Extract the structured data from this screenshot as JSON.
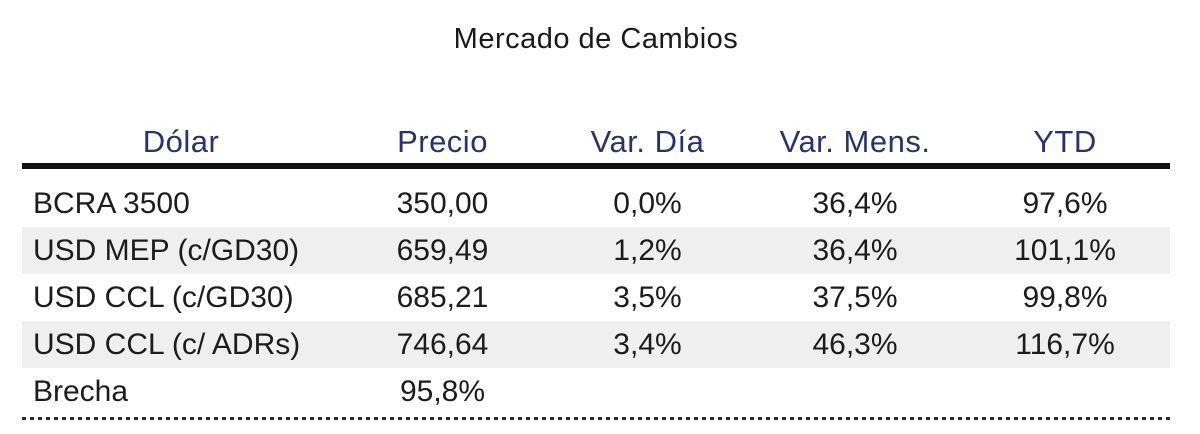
{
  "chart_data": {
    "type": "table",
    "title": "Mercado de Cambios",
    "columns": [
      "Dólar",
      "Precio",
      "Var. Día",
      "Var. Mens.",
      "YTD"
    ],
    "rows": [
      [
        "BCRA 3500",
        "350,00",
        "0,0%",
        "36,4%",
        "97,6%"
      ],
      [
        "USD MEP (c/GD30)",
        "659,49",
        "1,2%",
        "36,4%",
        "101,1%"
      ],
      [
        "USD CCL (c/GD30)",
        "685,21",
        "3,5%",
        "37,5%",
        "99,8%"
      ],
      [
        "USD CCL (c/ ADRs)",
        "746,64",
        "3,4%",
        "46,3%",
        "116,7%"
      ],
      [
        "Brecha",
        "95,8%",
        "",
        "",
        ""
      ]
    ],
    "notes": "Percent columns use comma decimal separator; alternating row shading; thick rule under header; dashed rule under table"
  },
  "colors": {
    "header_text": "#24356e",
    "body_text": "#1c1c1c",
    "row_stripe": "#efefef",
    "header_rule": "#111111",
    "bottom_rule": "#2e2e2e",
    "background": "#ffffff"
  }
}
